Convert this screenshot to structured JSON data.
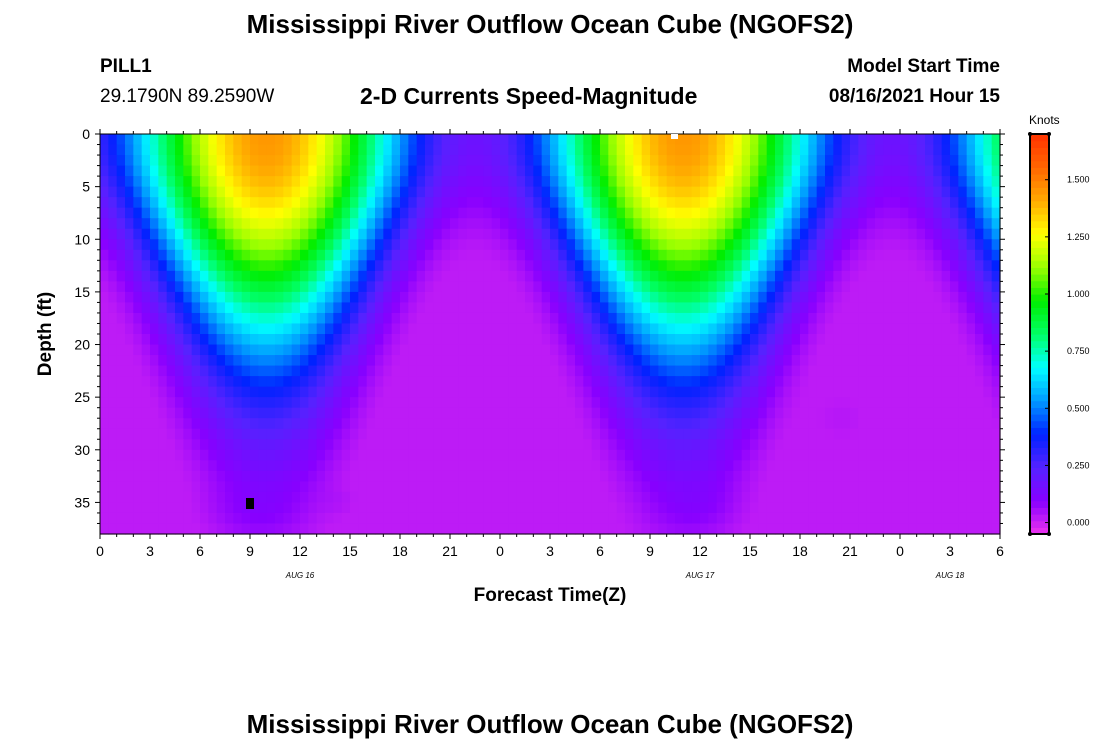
{
  "header": {
    "title": "Mississippi River Outflow Ocean Cube (NGOFS2)",
    "station": "PILL1",
    "coordinates": "29.1790N  89.2590W",
    "subtitle": "2-D Currents Speed-Magnitude",
    "model_start_label": "Model Start Time",
    "model_start_value": "08/16/2021 Hour 15"
  },
  "footer": {
    "title": "Mississippi River Outflow Ocean Cube (NGOFS2)"
  },
  "chart_data": {
    "type": "heatmap",
    "title": "2-D Currents Speed-Magnitude",
    "xlabel": "Forecast Time(Z)",
    "ylabel": "Depth (ft)",
    "x_tick_labels": [
      "0",
      "3",
      "6",
      "9",
      "12",
      "15",
      "18",
      "21",
      "0",
      "3",
      "6",
      "9",
      "12",
      "15",
      "18",
      "21",
      "0",
      "3",
      "6"
    ],
    "x_hours": [
      0,
      54
    ],
    "date_labels": [
      {
        "label": "AUG 16",
        "hour": 12
      },
      {
        "label": "AUG 17",
        "hour": 36
      },
      {
        "label": "AUG 18",
        "hour": 51
      }
    ],
    "y_ticks": [
      0,
      5,
      10,
      15,
      20,
      25,
      30,
      35
    ],
    "y_range": [
      0,
      38
    ],
    "y_inverted": true,
    "colorbar": {
      "units": "Knots",
      "ticks": [
        "1.500",
        "1.250",
        "1.000",
        "0.750",
        "0.500",
        "0.250",
        "0.000"
      ],
      "tick_values": [
        1.5,
        1.25,
        1.0,
        0.75,
        0.5,
        0.25,
        0.0
      ],
      "range": [
        -0.05,
        1.7
      ],
      "colors": [
        "#ee33ee",
        "#8800ff",
        "#5522ff",
        "#0022ff",
        "#0099ff",
        "#00ffff",
        "#00ff66",
        "#00ee00",
        "#99ff00",
        "#ffff00",
        "#ffaa00",
        "#ff6600",
        "#ff3300"
      ]
    },
    "speed_model": {
      "description": "surface maxima near hour 10 and hour 35, weak near-bottom flow",
      "surface_peaks_hours": [
        10,
        35,
        53
      ],
      "peak_speed": 1.45,
      "min_speed": 0.02
    }
  }
}
